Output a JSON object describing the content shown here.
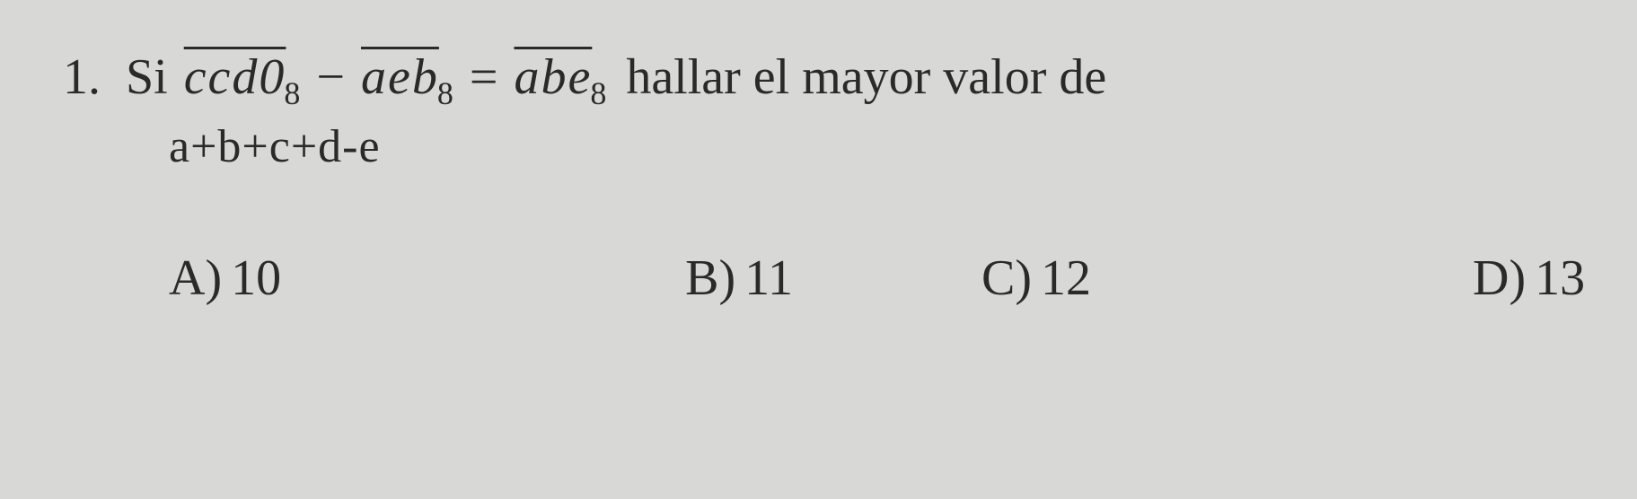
{
  "question": {
    "number": "1.",
    "si": "Si",
    "term1": "ccd0",
    "base1": "8",
    "minus": "−",
    "term2": "aeb",
    "base2": "8",
    "equals": "=",
    "term3": "abe",
    "base3": "8",
    "after": "hallar el mayor valor de",
    "expression": "a+b+c+d-e"
  },
  "options": {
    "a": {
      "label": "A)",
      "value": "10"
    },
    "b": {
      "label": "B)",
      "value": "11"
    },
    "c": {
      "label": "C)",
      "value": "12"
    },
    "d": {
      "label": "D)",
      "value": "13"
    }
  },
  "styling": {
    "background_color": "#d8d8d6",
    "text_color": "#2a2a2a",
    "font_family": "Times New Roman",
    "question_fontsize": 56,
    "expression_fontsize": 52,
    "options_fontsize": 56,
    "subscript_fontsize": 36,
    "overline_thickness": 3
  }
}
